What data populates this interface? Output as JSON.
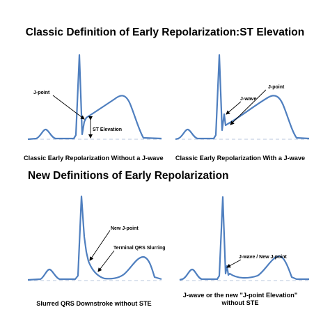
{
  "headings": {
    "classic": "Classic Definition of Early Repolarization:ST Elevation",
    "new": "New Definitions of Early Repolarization"
  },
  "panels": [
    {
      "caption": "Classic Early Repolarization Without a J-wave",
      "labels": {
        "j_point": "J-point",
        "st_elevation": "ST Elevation"
      }
    },
    {
      "caption": "Classic Early Repolarization With a J-wave",
      "labels": {
        "j_point": "J-point",
        "j_wave": "J-wave"
      }
    },
    {
      "caption": "Slurred QRS Downstroke without STE",
      "labels": {
        "new_j_point": "New J-point",
        "slurring": "Terminal QRS Slurring"
      }
    },
    {
      "caption_line1": "J-wave or the new \"J-point Elevation\"",
      "caption_line2": "without STE",
      "labels": {
        "j_wave_new_j_point": "J-wave / New J-point"
      }
    }
  ],
  "colors": {
    "trace": "#4f7fbf",
    "baseline": "#c8d2e4",
    "text": "#000000"
  }
}
